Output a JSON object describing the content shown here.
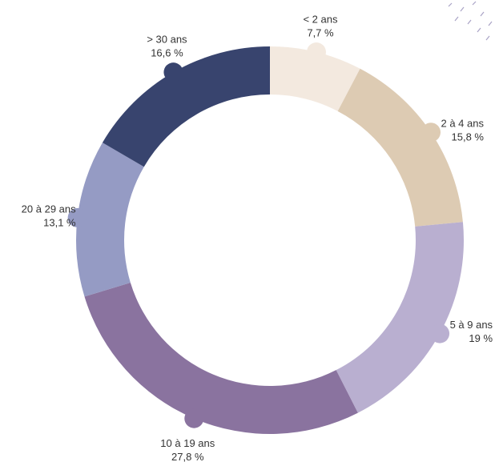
{
  "chart_data": {
    "type": "donut",
    "categories": [
      "< 2 ans",
      "2 à 4 ans",
      "5 à 9 ans",
      "10 à 19 ans",
      "20 à 29 ans",
      "> 30 ans"
    ],
    "values": [
      7.7,
      15.8,
      19,
      27.8,
      13.1,
      16.6
    ],
    "value_labels": [
      "7,7 %",
      "15,8 %",
      "19 %",
      "27,8 %",
      "13,1 %",
      "16,6 %"
    ],
    "colors": [
      "#f3e9df",
      "#ddcbb3",
      "#b9afd0",
      "#8a739f",
      "#959bc4",
      "#38446e"
    ]
  }
}
